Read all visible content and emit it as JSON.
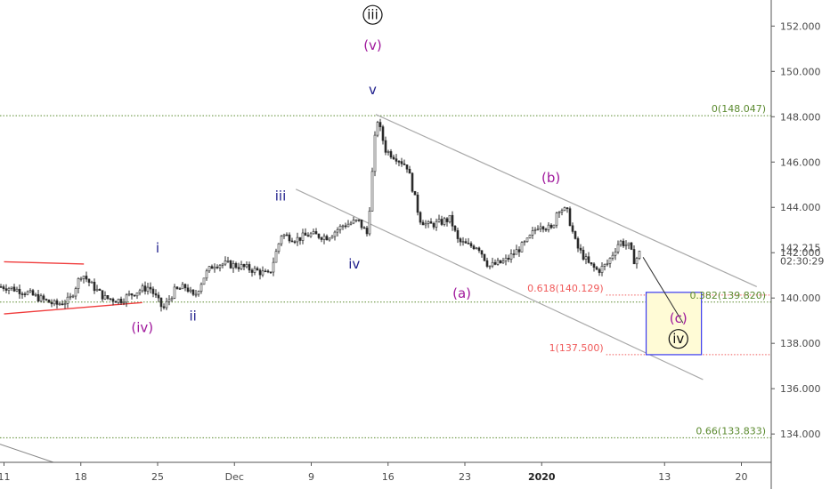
{
  "colors": {
    "candle": "#2b2b2b",
    "channel": "#a9a9a9",
    "red_line": "#f03c3c",
    "green_level": "#5b8a2f",
    "red_level": "#f05a5a",
    "wave_navy": "#1f1f8c",
    "wave_purple": "#a0189c",
    "box_fill": "#fffbd6",
    "box_stroke": "#3a3af0",
    "axis_text": "#4a4a4a"
  },
  "chart_data": {
    "type": "candlestick",
    "y_axis": {
      "position": "right",
      "ylim": [
        132.75,
        153.15
      ],
      "ticks": [
        "134.000",
        "136.000",
        "138.000",
        "140.000",
        "142.000",
        "144.000",
        "146.000",
        "148.000",
        "150.000",
        "152.000"
      ]
    },
    "current_price": {
      "label": "142.215",
      "timer": "02:30:29",
      "value": 142.215
    },
    "x_axis": {
      "ticks": [
        {
          "label": "11",
          "bar": 0
        },
        {
          "label": "18",
          "bar": 5
        },
        {
          "label": "25",
          "bar": 10
        },
        {
          "label": "Dec",
          "bar": 15
        },
        {
          "label": "9",
          "bar": 20
        },
        {
          "label": "16",
          "bar": 25
        },
        {
          "label": "23",
          "bar": 30
        },
        {
          "label": "2020",
          "bar": 35
        },
        {
          "label": "13",
          "bar": 43
        },
        {
          "label": "20",
          "bar": 48
        }
      ]
    },
    "price_path": [
      [
        0,
        140.5
      ],
      [
        1.2,
        140.3
      ],
      [
        2.2,
        140.0
      ],
      [
        3.3,
        139.7
      ],
      [
        4.2,
        139.9
      ],
      [
        5.0,
        141.1
      ],
      [
        5.6,
        140.6
      ],
      [
        6.5,
        140.0
      ],
      [
        7.5,
        139.9
      ],
      [
        8.6,
        140.3
      ],
      [
        9.4,
        140.5
      ],
      [
        10.3,
        139.5
      ],
      [
        11.0,
        140.3
      ],
      [
        11.8,
        140.5
      ],
      [
        12.3,
        140.0
      ],
      [
        13.0,
        141.0
      ],
      [
        13.6,
        141.5
      ],
      [
        14.4,
        141.5
      ],
      [
        15.3,
        141.4
      ],
      [
        16.4,
        141.2
      ],
      [
        17.2,
        141.0
      ],
      [
        18.0,
        142.8
      ],
      [
        19.0,
        142.6
      ],
      [
        19.8,
        142.8
      ],
      [
        21.0,
        142.7
      ],
      [
        22.0,
        143.2
      ],
      [
        23.0,
        143.4
      ],
      [
        23.6,
        142.8
      ],
      [
        24.2,
        148.0
      ],
      [
        24.8,
        146.5
      ],
      [
        25.5,
        146.2
      ],
      [
        26.2,
        145.8
      ],
      [
        27.0,
        143.5
      ],
      [
        27.5,
        143.2
      ],
      [
        28.2,
        143.3
      ],
      [
        29.0,
        143.5
      ],
      [
        29.5,
        142.5
      ],
      [
        30.2,
        142.3
      ],
      [
        30.8,
        142.3
      ],
      [
        31.5,
        141.4
      ],
      [
        32.0,
        141.5
      ],
      [
        32.5,
        141.6
      ],
      [
        33.2,
        142.0
      ],
      [
        34.0,
        142.5
      ],
      [
        34.8,
        143.3
      ],
      [
        35.6,
        143.0
      ],
      [
        36.0,
        144.0
      ],
      [
        36.6,
        143.8
      ],
      [
        37.2,
        142.3
      ],
      [
        38.0,
        141.5
      ],
      [
        38.6,
        141.2
      ],
      [
        39.2,
        141.5
      ],
      [
        40.0,
        142.5
      ],
      [
        40.6,
        142.3
      ],
      [
        41.0,
        141.6
      ],
      [
        41.4,
        142.1
      ]
    ],
    "fib_levels": [
      {
        "label": "0(148.047)",
        "value": 148.047,
        "color": "green"
      },
      {
        "label": "0.382(139.820)",
        "value": 139.82,
        "color": "green"
      },
      {
        "label": "0.66(133.833)",
        "value": 133.833,
        "color": "green"
      },
      {
        "label": "0.618(140.129)",
        "value": 140.129,
        "color": "red"
      },
      {
        "label": "1(137.500)",
        "value": 137.5,
        "color": "red"
      }
    ],
    "channel": {
      "upper": [
        [
          24.2,
          148.1
        ],
        [
          49.0,
          140.5
        ]
      ],
      "lower": [
        [
          19.0,
          144.8
        ],
        [
          45.5,
          136.4
        ]
      ]
    },
    "red_triangle": {
      "upper": [
        [
          0,
          141.6
        ],
        [
          5.2,
          141.5
        ]
      ],
      "lower": [
        [
          0,
          139.3
        ],
        [
          9.0,
          139.8
        ]
      ]
    },
    "target_box": {
      "bar_from": 41.8,
      "bar_to": 45.4,
      "top": 140.25,
      "bottom": 137.5
    },
    "projection": [
      [
        41.6,
        141.8
      ],
      [
        44.2,
        138.9
      ]
    ],
    "wave_labels": [
      {
        "text": "iii",
        "circled": true,
        "bar": 24.0,
        "price": 152.3,
        "color": "black"
      },
      {
        "text": "(v)",
        "bar": 24.0,
        "price": 150.95,
        "color": "purple"
      },
      {
        "text": "v",
        "bar": 24.0,
        "price": 149.0,
        "color": "navy"
      },
      {
        "text": "iii",
        "bar": 18.0,
        "price": 144.3,
        "color": "navy"
      },
      {
        "text": "i",
        "bar": 10.0,
        "price": 142.0,
        "color": "navy"
      },
      {
        "text": "iv",
        "bar": 22.8,
        "price": 141.3,
        "color": "navy"
      },
      {
        "text": "ii",
        "bar": 12.3,
        "price": 139.0,
        "color": "navy"
      },
      {
        "text": "(iv)",
        "bar": 9.0,
        "price": 138.5,
        "color": "purple"
      },
      {
        "text": "(a)",
        "bar": 29.8,
        "price": 140.0,
        "color": "purple"
      },
      {
        "text": "(b)",
        "bar": 35.6,
        "price": 145.1,
        "color": "purple"
      },
      {
        "text": "(c)",
        "bar": 43.9,
        "price": 138.9,
        "color": "purple"
      },
      {
        "text": "iv",
        "circled": true,
        "bar": 43.9,
        "price": 138.0,
        "color": "black"
      }
    ]
  }
}
